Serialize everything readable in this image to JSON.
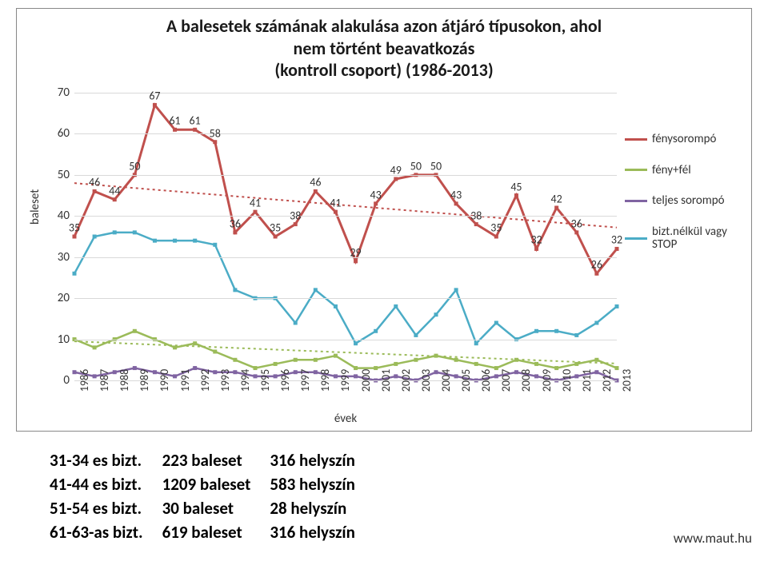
{
  "chart": {
    "title_l1": "A balesetek számának alakulása azon átjáró típusokon, ahol",
    "title_l2": "nem történt beavatkozás",
    "title_l3": "(kontroll csoport) (1986-2013)",
    "title_fontsize": 22,
    "y_label": "baleset",
    "x_label": "évek",
    "ylim": [
      0,
      70
    ],
    "ytick_step": 10,
    "yticks": [
      0,
      10,
      20,
      30,
      40,
      50,
      60,
      70
    ],
    "years": [
      1986,
      1987,
      1988,
      1989,
      1990,
      1991,
      1992,
      1993,
      1994,
      1995,
      1996,
      1997,
      1998,
      1999,
      2000,
      2001,
      2002,
      2003,
      2004,
      2005,
      2006,
      2007,
      2008,
      2009,
      2010,
      2011,
      2012,
      2013
    ],
    "background_color": "#ffffff",
    "grid_color": "#d9d9d9",
    "series": [
      {
        "id": "fenysorompo",
        "label": "fénysorompó",
        "color": "#c0504d",
        "width": 3,
        "dash": "none",
        "marker": true,
        "values": [
          35,
          46,
          44,
          50,
          67,
          61,
          61,
          58,
          36,
          41,
          35,
          38,
          46,
          41,
          29,
          43,
          49,
          50,
          50,
          43,
          38,
          35,
          45,
          32,
          42,
          36,
          26,
          32
        ],
        "show_labels": true
      },
      {
        "id": "feny_fel",
        "label": "fény+fél",
        "color": "#9bbb59",
        "width": 2.5,
        "dash": "none",
        "marker": true,
        "values": [
          10,
          8,
          10,
          12,
          10,
          8,
          9,
          7,
          5,
          3,
          4,
          5,
          5,
          6,
          3,
          3,
          4,
          5,
          6,
          5,
          4,
          3,
          5,
          4,
          3,
          4,
          5,
          3
        ],
        "show_labels": false
      },
      {
        "id": "teljes_sorompo",
        "label": "teljes sorompó",
        "color": "#8064a2",
        "width": 2.5,
        "dash": "none",
        "marker": true,
        "values": [
          2,
          1,
          2,
          3,
          2,
          1,
          3,
          2,
          2,
          1,
          1,
          2,
          2,
          1,
          1,
          0,
          1,
          0,
          2,
          1,
          0,
          1,
          2,
          1,
          0,
          1,
          2,
          0
        ],
        "show_labels": false
      },
      {
        "id": "bizt_nelkul",
        "label": "bizt.nélkül vagy STOP",
        "color": "#4bacc6",
        "width": 2.5,
        "dash": "none",
        "marker": true,
        "values": [
          26,
          35,
          36,
          36,
          34,
          34,
          34,
          33,
          22,
          20,
          20,
          14,
          22,
          18,
          9,
          12,
          18,
          11,
          16,
          22,
          9,
          14,
          10,
          12,
          12,
          11,
          14,
          18
        ],
        "show_labels": false
      },
      {
        "id": "trend_feny",
        "label": null,
        "color": "#c0504d",
        "width": 2,
        "dash": "3,4",
        "marker": false,
        "values": [
          48,
          47.6,
          47.2,
          46.8,
          46.4,
          46,
          45.6,
          45.2,
          44.8,
          44.4,
          44,
          43.6,
          43.2,
          42.8,
          42.4,
          42,
          41.6,
          41.2,
          40.8,
          40.4,
          40,
          39.6,
          39.2,
          38.8,
          38.4,
          38,
          37.6,
          37.2
        ],
        "show_labels": false
      },
      {
        "id": "trend_fenyfel",
        "label": null,
        "color": "#9bbb59",
        "width": 2,
        "dash": "3,4",
        "marker": false,
        "values": [
          9.5,
          9.3,
          9.1,
          8.9,
          8.7,
          8.5,
          8.3,
          8.1,
          7.9,
          7.7,
          7.5,
          7.3,
          7.1,
          6.9,
          6.7,
          6.5,
          6.3,
          6.1,
          5.9,
          5.7,
          5.5,
          5.3,
          5.1,
          4.9,
          4.7,
          4.5,
          4.3,
          4.1
        ],
        "show_labels": false
      }
    ],
    "legend_items": [
      {
        "label": "fénysorompó",
        "color": "#c0504d",
        "dash": "none"
      },
      {
        "label": "fény+fél",
        "color": "#9bbb59",
        "dash": "none"
      },
      {
        "label": "teljes sorompó",
        "color": "#8064a2",
        "dash": "none"
      },
      {
        "label": "bizt.nélkül vagy STOP",
        "color": "#4bacc6",
        "dash": "none"
      }
    ]
  },
  "table": {
    "rows": [
      {
        "c1": "31-34 es bizt.",
        "c2": "223 baleset",
        "c3": "316 helyszín"
      },
      {
        "c1": "41-44 es bizt.",
        "c2": "1209 baleset",
        "c3": "583 helyszín"
      },
      {
        "c1": "51-54 es bizt.",
        "c2": "30 baleset",
        "c3": "28 helyszín"
      },
      {
        "c1": "61-63-as bizt.",
        "c2": "619 baleset",
        "c3": "316 helyszín"
      }
    ]
  },
  "footer": "www.maut.hu"
}
